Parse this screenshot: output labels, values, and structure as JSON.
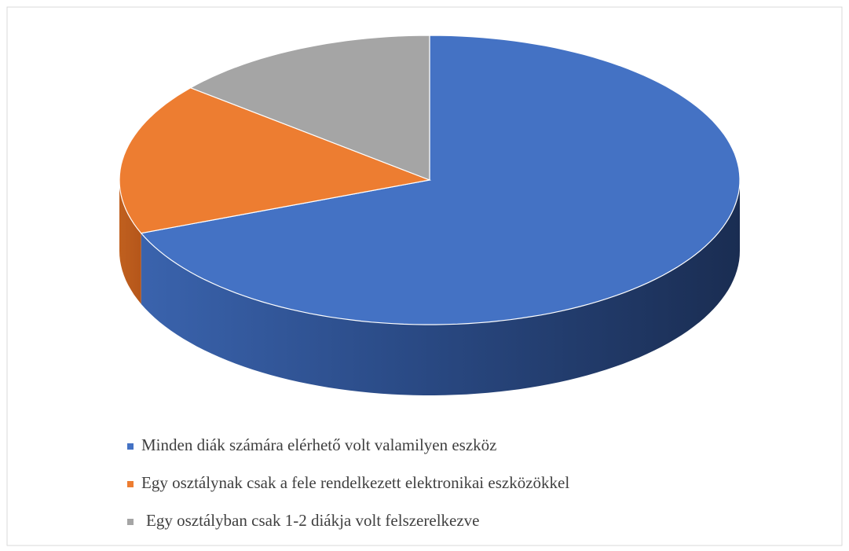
{
  "chart_data": {
    "type": "pie",
    "categories": [
      "Minden diák számára elérhető volt valamilyen eszköz",
      "Egy osztálynak csak a fele rendelkezett elektronikai eszközökkel",
      "Egy osztályban csak 1-2 diákja volt felszerelkezve"
    ],
    "values": [
      69,
      17,
      14
    ],
    "colors": [
      "#4472c4",
      "#ed7d31",
      "#a5a5a5"
    ],
    "legend": "bottom"
  }
}
